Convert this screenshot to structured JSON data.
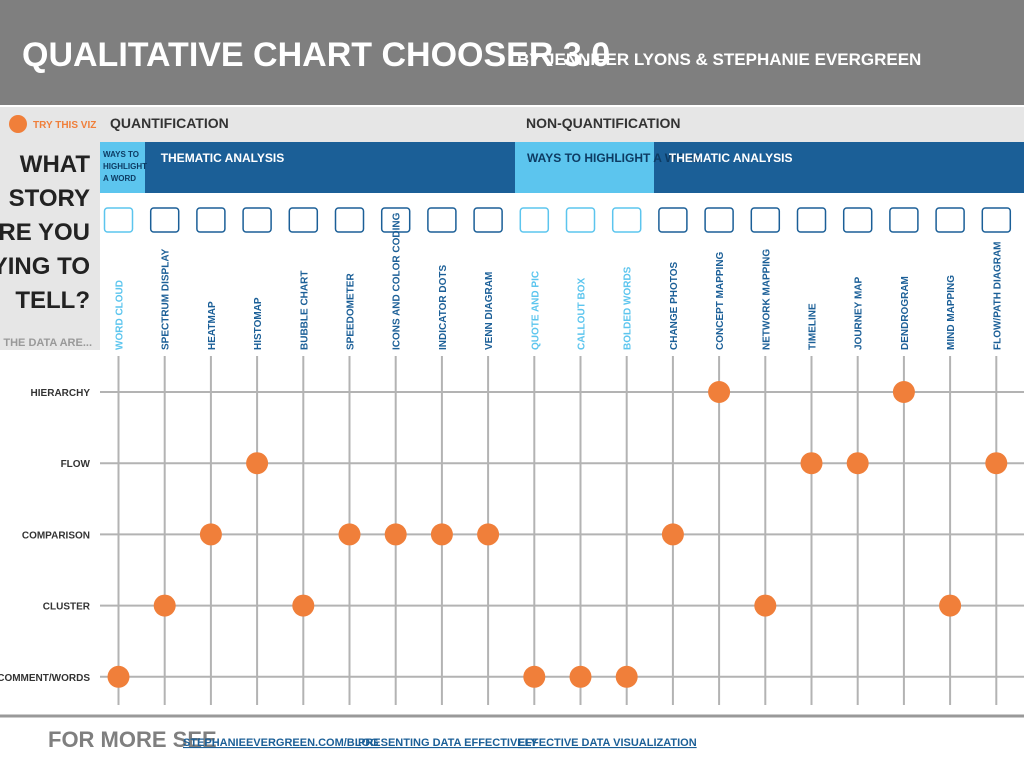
{
  "header": {
    "title": "QUALITATIVE CHART CHOOSER 3.0",
    "subtitle": "BY JENNIFER LYONS & STEPHANIE EVERGREEN"
  },
  "legend": "TRY THIS VIZ",
  "question": [
    "WHAT",
    "STORY",
    "ARE YOU",
    "TRYING TO",
    "TELL?"
  ],
  "data_are": "THE DATA ARE...",
  "sections": [
    {
      "title": "QUANTIFICATION",
      "groups": [
        {
          "title": "WAYS TO HIGHLIGHT A WORD",
          "columns": [
            "WORD CLOUD"
          ]
        },
        {
          "title": "THEMATIC ANALYSIS",
          "columns": [
            "SPECTRUM DISPLAY",
            "HEATMAP",
            "HISTOMAP",
            "BUBBLE CHART",
            "SPEEDOMETER",
            "ICONS AND COLOR CODING",
            "INDICATOR DOTS",
            "VENN DIAGRAM"
          ]
        }
      ]
    },
    {
      "title": "NON-QUANTIFICATION",
      "groups": [
        {
          "title": "WAYS TO HIGHLIGHT A WORD",
          "columns": [
            "QUOTE AND PIC",
            "CALLOUT BOX",
            "BOLDED WORDS"
          ]
        },
        {
          "title": "THEMATIC ANALYSIS",
          "columns": [
            "CHANGE PHOTOS",
            "CONCEPT MAPPING",
            "NETWORK MAPPING",
            "TIMELINE",
            "JOURNEY MAP",
            "DENDROGRAM",
            "MIND MAPPING",
            "FLOW/PATH DIAGRAM"
          ]
        }
      ]
    }
  ],
  "rows": [
    {
      "label": "HIERARCHY",
      "columns": [
        13,
        17
      ]
    },
    {
      "label": "FLOW",
      "columns": [
        3,
        15,
        16,
        19
      ]
    },
    {
      "label": "COMPARISON",
      "columns": [
        2,
        5,
        6,
        7,
        8,
        12
      ]
    },
    {
      "label": "CLUSTER",
      "columns": [
        1,
        4,
        14,
        18
      ]
    },
    {
      "label": "COMMENT/WORDS",
      "columns": [
        0,
        9,
        10,
        11
      ]
    }
  ],
  "footer": {
    "lead": "FOR MORE SEE",
    "links": [
      "STEPHANIEEVERGREEN.COM/BLOG",
      "PRESENTING DATA EFFECTIVELY",
      "EFFECTIVE DATA VISUALIZATION"
    ]
  }
}
